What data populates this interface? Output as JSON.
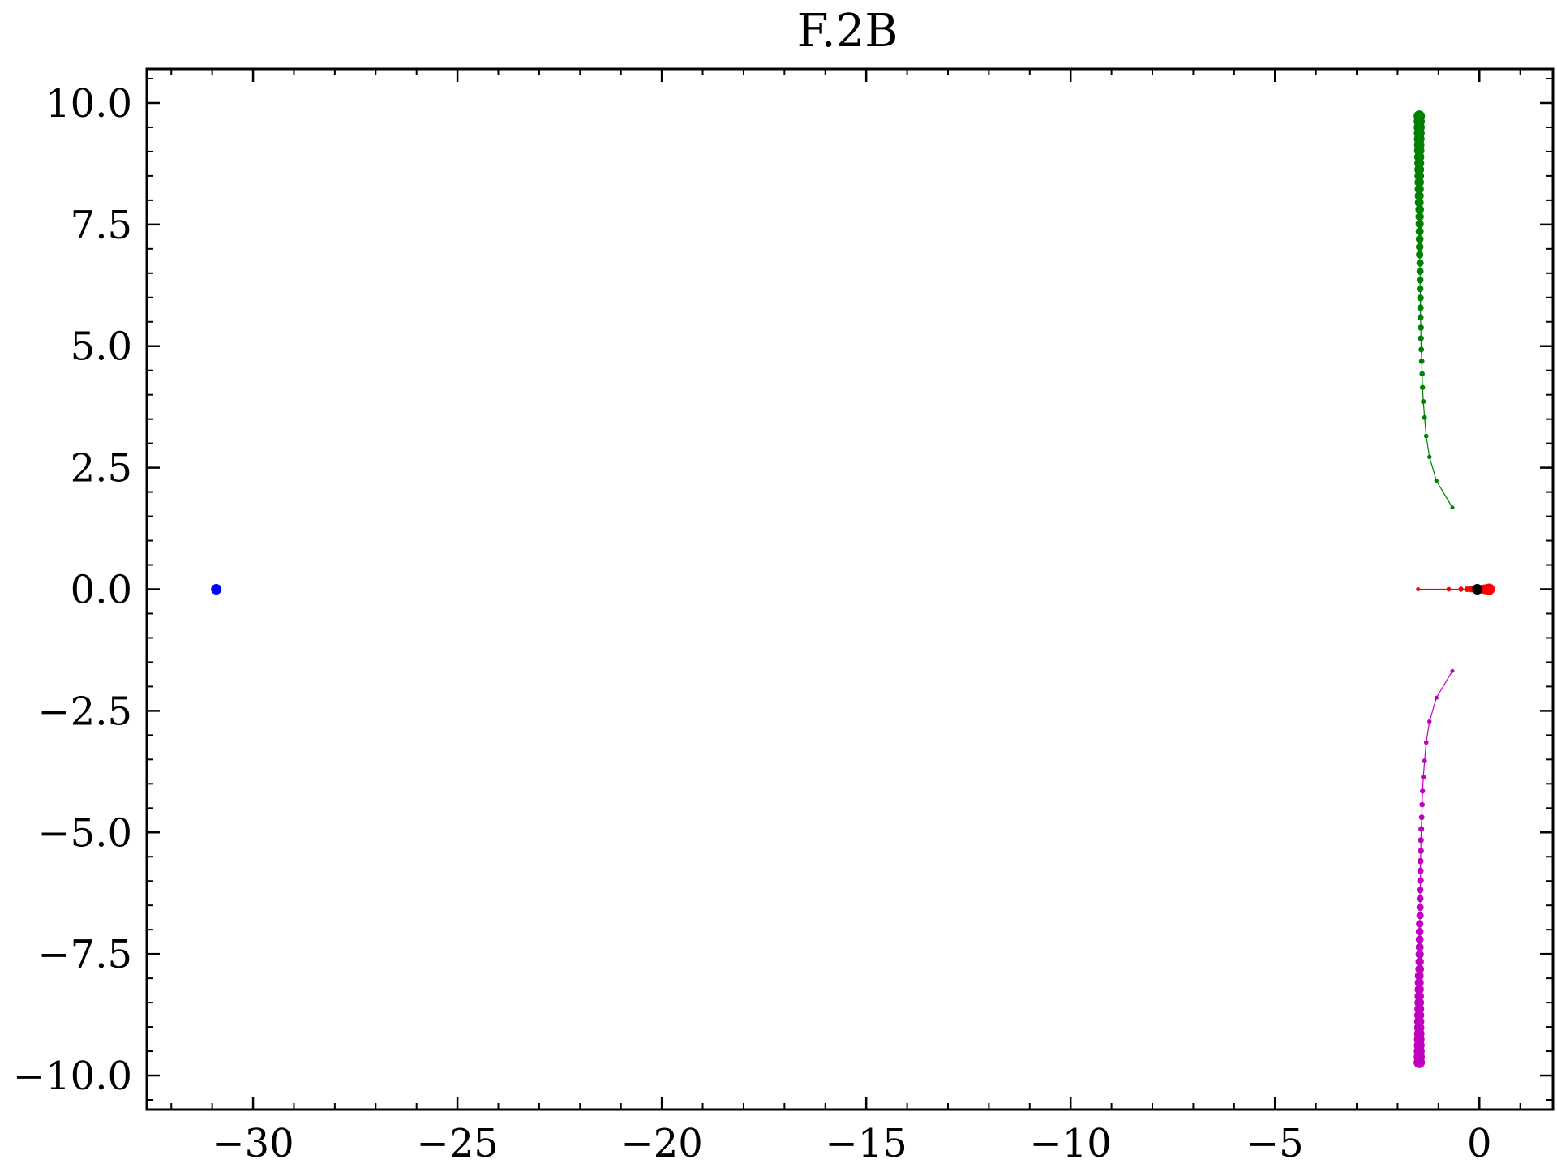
{
  "chart_data": {
    "type": "scatter",
    "title": "F.2B",
    "xlabel": "",
    "ylabel": "",
    "xlim": [
      -32.6,
      1.8
    ],
    "ylim": [
      -10.7,
      10.7
    ],
    "xticks": [
      -30,
      -25,
      -20,
      -15,
      -10,
      -5,
      0
    ],
    "xtick_labels": [
      "−30",
      "−25",
      "−20",
      "−15",
      "−10",
      "−5",
      "0"
    ],
    "yticks": [
      10.0,
      7.5,
      5.0,
      2.5,
      0.0,
      -2.5,
      -5.0,
      -7.5,
      -10.0
    ],
    "ytick_labels": [
      "10.0",
      "7.5",
      "5.0",
      "2.5",
      "0.0",
      "−2.5",
      "−5.0",
      "−7.5",
      "−10.0"
    ],
    "grid": false,
    "legend": "none",
    "series": [
      {
        "color": "#008000",
        "line": true,
        "points": [
          [
            -0.66,
            1.68
          ],
          [
            -1.05,
            2.23
          ],
          [
            -1.22,
            2.72
          ],
          [
            -1.3,
            3.15
          ],
          [
            -1.34,
            3.53
          ],
          [
            -1.37,
            3.86
          ],
          [
            -1.39,
            4.15
          ],
          [
            -1.4,
            4.43
          ],
          [
            -1.41,
            4.69
          ],
          [
            -1.42,
            4.93
          ],
          [
            -1.43,
            5.16
          ],
          [
            -1.43,
            5.38
          ],
          [
            -1.44,
            5.59
          ],
          [
            -1.44,
            5.79
          ],
          [
            -1.44,
            5.99
          ],
          [
            -1.45,
            6.18
          ],
          [
            -1.45,
            6.36
          ],
          [
            -1.45,
            6.54
          ],
          [
            -1.45,
            6.71
          ],
          [
            -1.46,
            6.88
          ],
          [
            -1.46,
            7.04
          ],
          [
            -1.46,
            7.2
          ],
          [
            -1.46,
            7.36
          ],
          [
            -1.46,
            7.51
          ],
          [
            -1.46,
            7.66
          ],
          [
            -1.46,
            7.81
          ],
          [
            -1.47,
            7.95
          ],
          [
            -1.47,
            8.09
          ],
          [
            -1.47,
            8.23
          ],
          [
            -1.47,
            8.37
          ],
          [
            -1.47,
            8.5
          ],
          [
            -1.47,
            8.63
          ],
          [
            -1.47,
            8.76
          ],
          [
            -1.47,
            8.89
          ],
          [
            -1.47,
            9.02
          ],
          [
            -1.47,
            9.14
          ],
          [
            -1.47,
            9.26
          ],
          [
            -1.47,
            9.38
          ],
          [
            -1.47,
            9.5
          ],
          [
            -1.47,
            9.62
          ],
          [
            -1.47,
            9.73
          ]
        ]
      },
      {
        "color": "#bf00bf",
        "line": true,
        "points": [
          [
            -0.66,
            -1.68
          ],
          [
            -1.05,
            -2.23
          ],
          [
            -1.22,
            -2.72
          ],
          [
            -1.3,
            -3.15
          ],
          [
            -1.34,
            -3.53
          ],
          [
            -1.37,
            -3.86
          ],
          [
            -1.39,
            -4.15
          ],
          [
            -1.4,
            -4.43
          ],
          [
            -1.41,
            -4.69
          ],
          [
            -1.42,
            -4.93
          ],
          [
            -1.43,
            -5.16
          ],
          [
            -1.43,
            -5.38
          ],
          [
            -1.44,
            -5.59
          ],
          [
            -1.44,
            -5.79
          ],
          [
            -1.44,
            -5.99
          ],
          [
            -1.45,
            -6.18
          ],
          [
            -1.45,
            -6.36
          ],
          [
            -1.45,
            -6.54
          ],
          [
            -1.45,
            -6.71
          ],
          [
            -1.46,
            -6.88
          ],
          [
            -1.46,
            -7.04
          ],
          [
            -1.46,
            -7.2
          ],
          [
            -1.46,
            -7.36
          ],
          [
            -1.46,
            -7.51
          ],
          [
            -1.46,
            -7.66
          ],
          [
            -1.46,
            -7.81
          ],
          [
            -1.47,
            -7.95
          ],
          [
            -1.47,
            -8.09
          ],
          [
            -1.47,
            -8.23
          ],
          [
            -1.47,
            -8.37
          ],
          [
            -1.47,
            -8.5
          ],
          [
            -1.47,
            -8.63
          ],
          [
            -1.47,
            -8.76
          ],
          [
            -1.47,
            -8.89
          ],
          [
            -1.47,
            -9.02
          ],
          [
            -1.47,
            -9.14
          ],
          [
            -1.47,
            -9.26
          ],
          [
            -1.47,
            -9.38
          ],
          [
            -1.47,
            -9.5
          ],
          [
            -1.47,
            -9.62
          ],
          [
            -1.47,
            -9.73
          ]
        ]
      },
      {
        "color": "#ff0000",
        "line": true,
        "points": [
          [
            -1.5,
            0.0
          ],
          [
            -0.75,
            0.0
          ],
          [
            -0.45,
            0.0
          ],
          [
            -0.3,
            0.0
          ],
          [
            -0.2,
            0.0
          ],
          [
            -0.12,
            0.0
          ],
          [
            -0.06,
            0.0
          ],
          [
            0.0,
            0.0
          ],
          [
            0.05,
            0.0
          ],
          [
            0.1,
            0.0
          ],
          [
            0.14,
            0.0
          ],
          [
            0.18,
            0.0
          ],
          [
            0.21,
            0.0
          ],
          [
            0.24,
            0.0
          ]
        ]
      },
      {
        "color": "#000000",
        "line": false,
        "points": [
          [
            -0.05,
            0.0
          ]
        ]
      },
      {
        "color": "#0000ff",
        "line": false,
        "points": [
          [
            -30.9,
            0.0
          ]
        ]
      }
    ]
  }
}
